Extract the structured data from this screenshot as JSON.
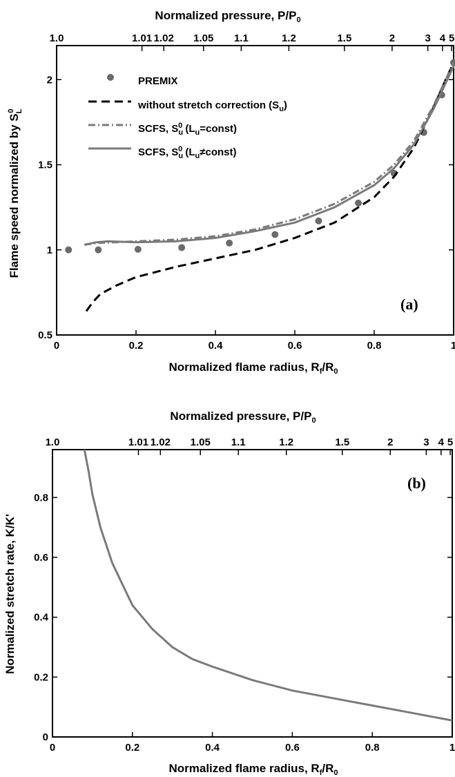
{
  "chart_data": [
    {
      "type": "line",
      "panel_label": "(a)",
      "xlabel": "Normalized flame radius, R_f/R_0",
      "ylabel": "Flame speed normalized by S_L^0",
      "top_xlabel": "Normalized pressure, P/P_0",
      "xlim": [
        0,
        1
      ],
      "ylim": [
        0.5,
        2.2
      ],
      "x_ticks": [
        "0",
        "0.2",
        "0.4",
        "0.6",
        "0.8",
        "1"
      ],
      "y_ticks": [
        "0.5",
        "1",
        "1.5",
        "2"
      ],
      "top_ticks": [
        {
          "label": "1.0",
          "x": 0.0
        },
        {
          "label": "1.01",
          "x": 0.215
        },
        {
          "label": "1.02",
          "x": 0.27
        },
        {
          "label": "1.05",
          "x": 0.37
        },
        {
          "label": "1.1",
          "x": 0.465
        },
        {
          "label": "1.2",
          "x": 0.585
        },
        {
          "label": "1.5",
          "x": 0.725
        },
        {
          "label": "2",
          "x": 0.845
        },
        {
          "label": "3",
          "x": 0.935
        },
        {
          "label": "4",
          "x": 0.972
        },
        {
          "label": "5",
          "x": 0.995
        }
      ],
      "legend_position": "top-left",
      "series": [
        {
          "name": "PREMIX",
          "style": "markers",
          "color": "#6b6b6b",
          "x": [
            0.03,
            0.105,
            0.205,
            0.315,
            0.435,
            0.55,
            0.66,
            0.76,
            0.85,
            0.925,
            0.97,
            1.0
          ],
          "y": [
            1.0,
            1.0,
            1.003,
            1.013,
            1.04,
            1.09,
            1.17,
            1.275,
            1.45,
            1.69,
            1.91,
            2.1
          ]
        },
        {
          "name": "without stretch correction (S_u)",
          "style": "dashed",
          "color": "#000000",
          "x": [
            0.075,
            0.09,
            0.11,
            0.15,
            0.2,
            0.3,
            0.4,
            0.5,
            0.6,
            0.7,
            0.8,
            0.85,
            0.9,
            0.95,
            0.98,
            1.0
          ],
          "y": [
            0.64,
            0.69,
            0.74,
            0.79,
            0.84,
            0.9,
            0.95,
            1.0,
            1.07,
            1.16,
            1.31,
            1.43,
            1.6,
            1.84,
            2.0,
            2.1
          ]
        },
        {
          "name": "SCFS, S_u^0 (L_u=const)",
          "style": "dashdot",
          "color": "#7a7a7a",
          "x": [
            0.07,
            0.1,
            0.15,
            0.2,
            0.3,
            0.4,
            0.5,
            0.6,
            0.7,
            0.8,
            0.85,
            0.9,
            0.95,
            0.98,
            1.0
          ],
          "y": [
            1.03,
            1.04,
            1.045,
            1.05,
            1.06,
            1.08,
            1.12,
            1.18,
            1.27,
            1.4,
            1.5,
            1.64,
            1.85,
            2.0,
            2.1
          ]
        },
        {
          "name": "SCFS, S_u^0 (L_u≠const)",
          "style": "solid",
          "color": "#7a7a7a",
          "x": [
            0.07,
            0.1,
            0.13,
            0.2,
            0.3,
            0.4,
            0.5,
            0.6,
            0.7,
            0.8,
            0.85,
            0.9,
            0.95,
            0.98,
            1.0
          ],
          "y": [
            1.03,
            1.045,
            1.05,
            1.045,
            1.05,
            1.07,
            1.11,
            1.16,
            1.25,
            1.38,
            1.48,
            1.62,
            1.83,
            1.98,
            2.08
          ]
        }
      ]
    },
    {
      "type": "line",
      "panel_label": "(b)",
      "xlabel": "Normalized flame radius, R_f/R_0",
      "ylabel": "Normalized stretch rate, K/K'",
      "top_xlabel": "Normalized pressure, P/P_0",
      "xlim": [
        0,
        1
      ],
      "ylim": [
        0,
        0.96
      ],
      "x_ticks": [
        "0",
        "0.2",
        "0.4",
        "0.6",
        "0.8",
        "1"
      ],
      "y_ticks": [
        "0",
        "0.2",
        "0.4",
        "0.6",
        "0.8"
      ],
      "top_ticks": [
        {
          "label": "1.0",
          "x": 0.0
        },
        {
          "label": "1.01",
          "x": 0.215
        },
        {
          "label": "1.02",
          "x": 0.27
        },
        {
          "label": "1.05",
          "x": 0.37
        },
        {
          "label": "1.1",
          "x": 0.465
        },
        {
          "label": "1.2",
          "x": 0.585
        },
        {
          "label": "1.5",
          "x": 0.725
        },
        {
          "label": "2",
          "x": 0.845
        },
        {
          "label": "3",
          "x": 0.935
        },
        {
          "label": "4",
          "x": 0.972
        },
        {
          "label": "5",
          "x": 0.995
        }
      ],
      "series": [
        {
          "style": "solid",
          "color": "#7a7a7a",
          "x": [
            0.08,
            0.09,
            0.1,
            0.12,
            0.15,
            0.2,
            0.25,
            0.3,
            0.35,
            0.4,
            0.5,
            0.6,
            0.7,
            0.8,
            0.9,
            1.0
          ],
          "y": [
            0.96,
            0.89,
            0.81,
            0.7,
            0.58,
            0.44,
            0.36,
            0.3,
            0.26,
            0.235,
            0.19,
            0.155,
            0.13,
            0.105,
            0.08,
            0.055
          ]
        }
      ]
    }
  ],
  "colors": {
    "axis": "#000000",
    "gray_series": "#7a7a7a",
    "marker": "#6b6b6b"
  }
}
